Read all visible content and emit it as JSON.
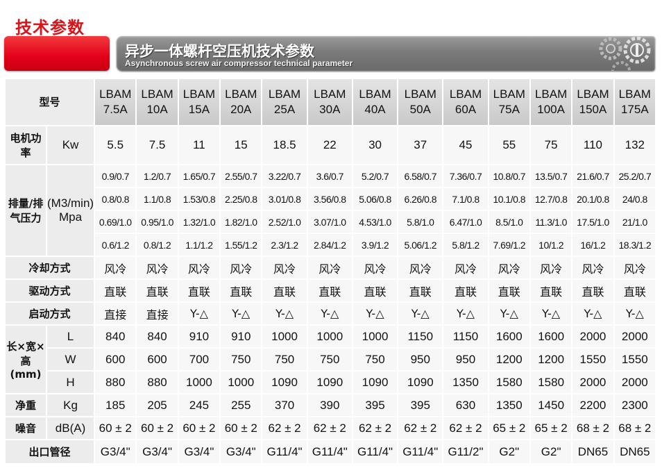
{
  "page_title": "技术参数",
  "banner": {
    "title_cn": "异步一体螺杆空压机技术参数",
    "title_en": "Asynchronous screw air compressor technical parameter",
    "accent": "#e3001a"
  },
  "header": {
    "label": "型号",
    "models": [
      "LBAM 7.5A",
      "LBAM 10A",
      "LBAM 15A",
      "LBAM 20A",
      "LBAM 25A",
      "LBAM 30A",
      "LBAM 40A",
      "LBAM 50A",
      "LBAM 60A",
      "LBAM 75A",
      "LBAM 100A",
      "LBAM 150A",
      "LBAM 175A"
    ]
  },
  "rows": {
    "power": {
      "label": "电机功率",
      "unit": "Kw",
      "values": [
        "5.5",
        "7.5",
        "11",
        "15",
        "18.5",
        "22",
        "30",
        "37",
        "45",
        "55",
        "75",
        "110",
        "132"
      ]
    },
    "displacement": {
      "label": "排量/排气压力",
      "unit": "(M3/min) Mpa",
      "rows": [
        [
          "0.9/0.7",
          "1.2/0.7",
          "1.65/0.7",
          "2.55/0.7",
          "3.22/0.7",
          "3.6/0.7",
          "5.2/0.7",
          "6.58/0.7",
          "7.36/0.7",
          "10.8/0.7",
          "13.5/0.7",
          "21.6/0.7",
          "25.2/0.7"
        ],
        [
          "0.8/0.8",
          "1.1/0.8",
          "1.53/0.8",
          "2.25/0.8",
          "3.01/0.8",
          "3.56/0.8",
          "5.06/0.8",
          "6.26/0.8",
          "7.1/0.8",
          "10.1/0.8",
          "12.7/0.8",
          "20.1/0.8",
          "24/0.8"
        ],
        [
          "0.69/1.0",
          "0.95/1.0",
          "1.32/1.0",
          "1.82/1.0",
          "2.52/1.0",
          "3.07/1.0",
          "4.53/1.0",
          "5.8/1.0",
          "6.47/1.0",
          "8.5/1.0",
          "11.3/1.0",
          "17.5/1.0",
          "21/1.0"
        ],
        [
          "0.6/1.2",
          "0.8/1.2",
          "1.1/1.2",
          "1.55/1.2",
          "2.3/1.2",
          "2.84/1.2",
          "3.9/1.2",
          "5.06/1.2",
          "5.8/1.2",
          "7.69/1.2",
          "10/1.2",
          "16/1.2",
          "18.3/1.2"
        ]
      ]
    },
    "cooling": {
      "label": "冷却方式",
      "values": [
        "风冷",
        "风冷",
        "风冷",
        "风冷",
        "风冷",
        "风冷",
        "风冷",
        "风冷",
        "风冷",
        "风冷",
        "风冷",
        "风冷",
        "风冷"
      ]
    },
    "drive": {
      "label": "驱动方式",
      "values": [
        "直联",
        "直联",
        "直联",
        "直联",
        "直联",
        "直联",
        "直联",
        "直联",
        "直联",
        "直联",
        "直联",
        "直联",
        "直联"
      ]
    },
    "start": {
      "label": "启动方式",
      "values": [
        "直接",
        "直接",
        "Y-△",
        "Y-△",
        "Y-△",
        "Y-△",
        "Y-△",
        "Y-△",
        "Y-△",
        "Y-△",
        "Y-△",
        "Y-△",
        "Y-△"
      ]
    },
    "dimensions": {
      "label": "长×宽×高(mm)",
      "rows": [
        {
          "unit": "L",
          "values": [
            "840",
            "840",
            "910",
            "910",
            "1000",
            "1000",
            "1000",
            "1150",
            "1150",
            "1600",
            "1600",
            "2000",
            "2000"
          ]
        },
        {
          "unit": "W",
          "values": [
            "600",
            "600",
            "700",
            "750",
            "750",
            "750",
            "750",
            "950",
            "950",
            "1200",
            "1200",
            "1550",
            "1550"
          ]
        },
        {
          "unit": "H",
          "values": [
            "880",
            "880",
            "1000",
            "1000",
            "1090",
            "1090",
            "1090",
            "1090",
            "1350",
            "1580",
            "1580",
            "2000",
            "2000"
          ]
        }
      ]
    },
    "weight": {
      "label": "净重",
      "unit": "Kg",
      "values": [
        "185",
        "205",
        "245",
        "255",
        "370",
        "390",
        "395",
        "395",
        "630",
        "1350",
        "1450",
        "2200",
        "2300"
      ]
    },
    "noise": {
      "label": "噪音",
      "unit": "dB(A)",
      "values": [
        "60 ± 2",
        "60 ± 2",
        "60 ± 2",
        "60 ± 2",
        "62 ± 2",
        "62 ± 2",
        "62 ± 2",
        "62 ± 2",
        "62 ± 2",
        "65 ± 2",
        "65 ± 2",
        "68 ± 2",
        "68 ± 2"
      ]
    },
    "outlet": {
      "label": "出口管径",
      "values": [
        "G3/4\"",
        "G3/4\"",
        "G3/4\"",
        "G3/4\"",
        "G11/4\"",
        "G11/4\"",
        "G11/4\"",
        "G11/4\"",
        "G11/2\"",
        "G2\"",
        "G2\"",
        "DN65",
        "DN65"
      ]
    }
  }
}
